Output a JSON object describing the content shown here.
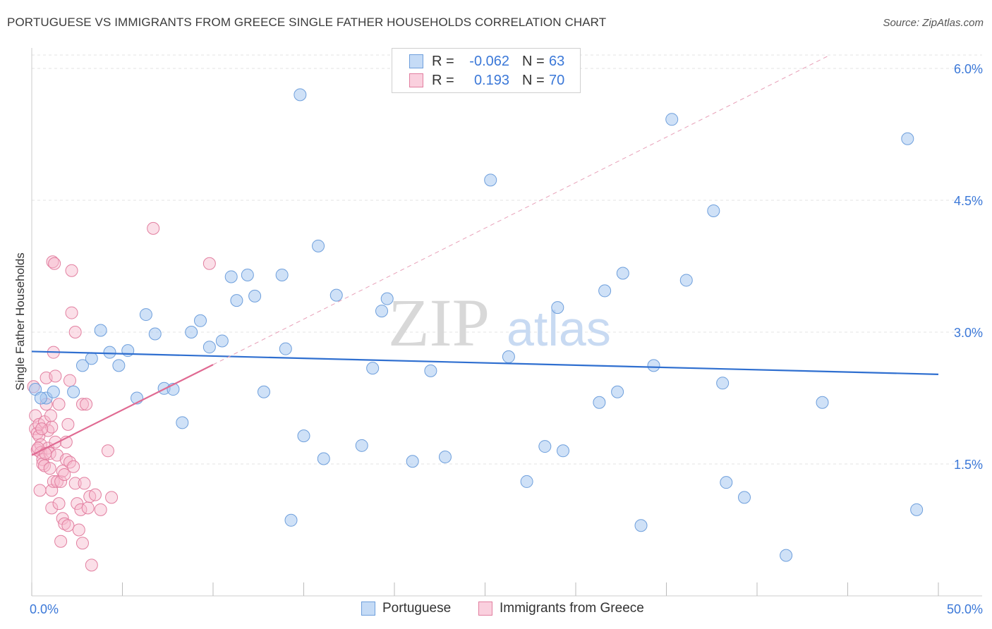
{
  "title": "PORTUGUESE VS IMMIGRANTS FROM GREECE SINGLE FATHER HOUSEHOLDS CORRELATION CHART",
  "source": "Source: ZipAtlas.com",
  "watermark": {
    "zip": "ZIP",
    "atlas": "atlas"
  },
  "legend": {
    "r_label": "R =",
    "n_label": "N =",
    "series": [
      {
        "name": "Portuguese",
        "r": "-0.062",
        "n": "63",
        "color": "#a8c8f0",
        "stroke": "#6e9fdc"
      },
      {
        "name": "Immigrants from Greece",
        "r": "0.193",
        "n": "70",
        "color": "#f6b8cc",
        "stroke": "#e27fa0"
      }
    ]
  },
  "chart_data": {
    "type": "scatter",
    "title": "PORTUGUESE VS IMMIGRANTS FROM GREECE SINGLE FATHER HOUSEHOLDS CORRELATION CHART",
    "xlabel": "",
    "ylabel": "Single Father Households",
    "xlim": [
      0,
      50
    ],
    "ylim": [
      0,
      6.2
    ],
    "x_tick_labels": [
      "0.0%",
      "50.0%"
    ],
    "y_ticks": [
      1.5,
      3.0,
      4.5,
      6.0
    ],
    "y_tick_labels": [
      "1.5%",
      "3.0%",
      "4.5%",
      "6.0%"
    ],
    "grid": true,
    "series": [
      {
        "name": "Portuguese",
        "color": "#a8c8f0",
        "stroke": "#6e9fdc",
        "points": [
          [
            0.2,
            2.35
          ],
          [
            0.8,
            2.25
          ],
          [
            1.2,
            2.32
          ],
          [
            2.3,
            2.32
          ],
          [
            2.8,
            2.62
          ],
          [
            3.3,
            2.7
          ],
          [
            3.8,
            3.02
          ],
          [
            4.3,
            2.77
          ],
          [
            4.8,
            2.62
          ],
          [
            5.3,
            2.79
          ],
          [
            5.8,
            2.25
          ],
          [
            6.3,
            3.2
          ],
          [
            6.8,
            2.98
          ],
          [
            7.3,
            2.36
          ],
          [
            7.8,
            2.35
          ],
          [
            8.3,
            1.97
          ],
          [
            8.8,
            3.0
          ],
          [
            9.3,
            3.13
          ],
          [
            9.8,
            2.83
          ],
          [
            10.5,
            2.9
          ],
          [
            11.0,
            3.63
          ],
          [
            11.3,
            3.36
          ],
          [
            11.9,
            3.65
          ],
          [
            12.3,
            3.41
          ],
          [
            12.8,
            2.32
          ],
          [
            13.8,
            3.65
          ],
          [
            14.0,
            2.81
          ],
          [
            14.3,
            0.86
          ],
          [
            14.8,
            5.7
          ],
          [
            15.0,
            1.82
          ],
          [
            15.8,
            3.98
          ],
          [
            16.1,
            1.56
          ],
          [
            16.8,
            3.42
          ],
          [
            18.2,
            1.71
          ],
          [
            18.8,
            2.59
          ],
          [
            19.3,
            3.24
          ],
          [
            19.6,
            3.38
          ],
          [
            21.0,
            1.53
          ],
          [
            22.0,
            2.56
          ],
          [
            22.8,
            1.58
          ],
          [
            25.3,
            4.73
          ],
          [
            26.3,
            2.72
          ],
          [
            27.3,
            1.3
          ],
          [
            28.3,
            1.7
          ],
          [
            29.0,
            3.28
          ],
          [
            29.3,
            1.65
          ],
          [
            31.3,
            2.2
          ],
          [
            31.6,
            3.47
          ],
          [
            32.3,
            2.32
          ],
          [
            32.6,
            3.67
          ],
          [
            33.6,
            0.8
          ],
          [
            34.3,
            2.62
          ],
          [
            35.3,
            5.42
          ],
          [
            36.1,
            3.59
          ],
          [
            37.6,
            4.38
          ],
          [
            38.1,
            2.42
          ],
          [
            38.3,
            1.29
          ],
          [
            39.3,
            1.12
          ],
          [
            41.6,
            0.46
          ],
          [
            43.6,
            2.2
          ],
          [
            48.3,
            5.2
          ],
          [
            48.8,
            0.98
          ],
          [
            0.5,
            2.25
          ]
        ],
        "trend": {
          "x": [
            0,
            50
          ],
          "y": [
            2.78,
            2.52
          ]
        }
      },
      {
        "name": "Immigrants from Greece",
        "color": "#f6b8cc",
        "stroke": "#e27fa0",
        "points": [
          [
            0.1,
            2.38
          ],
          [
            0.2,
            2.05
          ],
          [
            0.2,
            1.9
          ],
          [
            0.3,
            1.85
          ],
          [
            0.3,
            1.66
          ],
          [
            0.4,
            1.82
          ],
          [
            0.4,
            1.95
          ],
          [
            0.5,
            1.72
          ],
          [
            0.5,
            1.63
          ],
          [
            0.6,
            1.55
          ],
          [
            0.6,
            1.5
          ],
          [
            0.7,
            1.48
          ],
          [
            0.7,
            1.98
          ],
          [
            0.8,
            2.48
          ],
          [
            0.8,
            2.18
          ],
          [
            0.9,
            1.88
          ],
          [
            0.9,
            1.68
          ],
          [
            1.0,
            1.62
          ],
          [
            1.0,
            1.45
          ],
          [
            1.1,
            1.92
          ],
          [
            1.1,
            1.2
          ],
          [
            1.1,
            1.0
          ],
          [
            1.2,
            2.77
          ],
          [
            1.2,
            1.3
          ],
          [
            1.3,
            2.5
          ],
          [
            1.3,
            1.75
          ],
          [
            1.4,
            1.6
          ],
          [
            1.4,
            1.3
          ],
          [
            1.5,
            2.18
          ],
          [
            1.5,
            1.05
          ],
          [
            1.6,
            1.3
          ],
          [
            1.6,
            0.62
          ],
          [
            1.7,
            1.42
          ],
          [
            1.7,
            0.88
          ],
          [
            1.8,
            1.38
          ],
          [
            1.8,
            0.82
          ],
          [
            1.9,
            1.75
          ],
          [
            1.9,
            1.55
          ],
          [
            2.0,
            1.95
          ],
          [
            2.0,
            0.8
          ],
          [
            2.1,
            2.45
          ],
          [
            2.1,
            1.52
          ],
          [
            2.2,
            3.7
          ],
          [
            2.2,
            3.22
          ],
          [
            2.3,
            1.47
          ],
          [
            2.4,
            3.0
          ],
          [
            2.4,
            1.28
          ],
          [
            2.5,
            1.05
          ],
          [
            2.6,
            0.75
          ],
          [
            2.7,
            0.98
          ],
          [
            2.8,
            2.18
          ],
          [
            2.8,
            0.6
          ],
          [
            2.9,
            1.28
          ],
          [
            3.0,
            2.18
          ],
          [
            3.1,
            1.0
          ],
          [
            3.2,
            1.13
          ],
          [
            3.3,
            0.35
          ],
          [
            3.5,
            1.15
          ],
          [
            3.8,
            0.98
          ],
          [
            4.2,
            1.65
          ],
          [
            4.4,
            1.12
          ],
          [
            6.7,
            4.18
          ],
          [
            9.8,
            3.78
          ],
          [
            1.15,
            3.8
          ],
          [
            1.25,
            3.78
          ],
          [
            0.35,
            1.68
          ],
          [
            0.55,
            1.9
          ],
          [
            0.75,
            1.62
          ],
          [
            1.05,
            2.05
          ],
          [
            0.45,
            1.2
          ]
        ],
        "trend": {
          "x": [
            0,
            10
          ],
          "y": [
            1.6,
            2.63
          ]
        },
        "trend_extension": {
          "x": [
            10,
            44
          ],
          "y": [
            2.63,
            6.15
          ]
        }
      }
    ]
  }
}
